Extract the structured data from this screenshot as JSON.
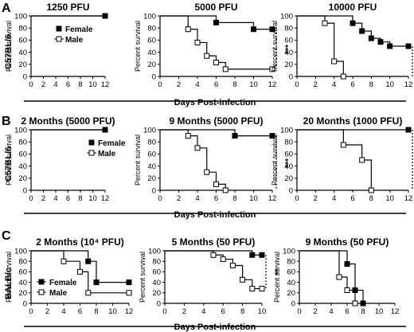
{
  "figure": {
    "rows": [
      {
        "letter": "A",
        "strain": "C57BL/6",
        "xlabel": "Days Post-infection"
      },
      {
        "letter": "B",
        "strain": "C57BL/6",
        "xlabel": "Days Post-infection"
      },
      {
        "letter": "C",
        "strain": "BALB/c",
        "xlabel": "Days Post-infection"
      }
    ],
    "ylabel": "Percent survival",
    "legend": {
      "female": "Female",
      "male": "Male"
    }
  },
  "chart_data": [
    {
      "type": "line",
      "id": "A1",
      "title": "1250 PFU",
      "ylabel": "Percent survival",
      "xlim": [
        0,
        12
      ],
      "ylim": [
        0,
        100
      ],
      "xticks": [
        0,
        2,
        4,
        6,
        8,
        10,
        12
      ],
      "yticks": [
        0,
        20,
        40,
        60,
        80,
        100
      ],
      "step": true,
      "significance": "",
      "series": [
        {
          "name": "Female",
          "marker": "filled-square",
          "x": [
            0,
            12
          ],
          "y": [
            100,
            100
          ]
        },
        {
          "name": "Male",
          "marker": "open-square",
          "x": [
            0,
            12
          ],
          "y": [
            100,
            100
          ]
        }
      ]
    },
    {
      "type": "line",
      "id": "A2",
      "title": "5000 PFU",
      "ylabel": "Percent survival",
      "xlim": [
        0,
        12
      ],
      "ylim": [
        0,
        100
      ],
      "xticks": [
        0,
        2,
        4,
        6,
        8,
        10,
        12
      ],
      "yticks": [
        0,
        20,
        40,
        60,
        80,
        100
      ],
      "step": true,
      "significance": "***",
      "series": [
        {
          "name": "Female",
          "marker": "filled-square",
          "x": [
            0,
            6,
            10,
            12
          ],
          "y": [
            100,
            89,
            78,
            78
          ]
        },
        {
          "name": "Male",
          "marker": "open-square",
          "x": [
            0,
            3,
            4,
            5,
            6,
            7,
            12
          ],
          "y": [
            100,
            78,
            56,
            34,
            23,
            12,
            12
          ]
        }
      ]
    },
    {
      "type": "line",
      "id": "A3",
      "title": "10000 PFU",
      "ylabel": "Percent survival",
      "xlim": [
        0,
        12
      ],
      "ylim": [
        0,
        100
      ],
      "xticks": [
        0,
        2,
        4,
        6,
        8,
        10,
        12
      ],
      "yticks": [
        0,
        20,
        40,
        60,
        80,
        100
      ],
      "step": true,
      "significance": "****",
      "series": [
        {
          "name": "Female",
          "marker": "filled-square",
          "x": [
            0,
            6,
            7,
            8,
            9,
            10,
            12
          ],
          "y": [
            100,
            88,
            75,
            63,
            57,
            50,
            50
          ]
        },
        {
          "name": "Male",
          "marker": "open-square",
          "x": [
            0,
            3,
            4,
            5
          ],
          "y": [
            100,
            88,
            25,
            0
          ]
        }
      ]
    },
    {
      "type": "line",
      "id": "B1",
      "title": "2 Months (5000 PFU)",
      "ylabel": "Percent survival",
      "xlim": [
        0,
        12
      ],
      "ylim": [
        0,
        100
      ],
      "xticks": [
        0,
        2,
        4,
        6,
        8,
        10,
        12
      ],
      "yticks": [
        0,
        20,
        40,
        60,
        80,
        100
      ],
      "step": true,
      "significance": "",
      "series": [
        {
          "name": "Female",
          "marker": "filled-square",
          "x": [
            0,
            12
          ],
          "y": [
            100,
            100
          ]
        },
        {
          "name": "Male",
          "marker": "open-square",
          "x": [
            0,
            12
          ],
          "y": [
            100,
            100
          ]
        }
      ]
    },
    {
      "type": "line",
      "id": "B2",
      "title": "9 Months (5000 PFU)",
      "ylabel": "Percent survival",
      "xlim": [
        0,
        12
      ],
      "ylim": [
        0,
        100
      ],
      "xticks": [
        0,
        2,
        4,
        6,
        8,
        10,
        12
      ],
      "yticks": [
        0,
        20,
        40,
        60,
        80,
        100
      ],
      "step": true,
      "significance": "***",
      "series": [
        {
          "name": "Female",
          "marker": "filled-square",
          "x": [
            0,
            8,
            12
          ],
          "y": [
            100,
            90,
            90
          ]
        },
        {
          "name": "Male",
          "marker": "open-square",
          "x": [
            0,
            3,
            4,
            5,
            6,
            7
          ],
          "y": [
            100,
            90,
            70,
            30,
            10,
            0
          ]
        }
      ]
    },
    {
      "type": "line",
      "id": "B3",
      "title": "20 Months (1000 PFU)",
      "ylabel": "Percent survival",
      "xlim": [
        0,
        12
      ],
      "ylim": [
        0,
        100
      ],
      "xticks": [
        0,
        2,
        4,
        6,
        8,
        10,
        12
      ],
      "yticks": [
        0,
        20,
        40,
        60,
        80,
        100
      ],
      "step": true,
      "significance": "**",
      "series": [
        {
          "name": "Female",
          "marker": "filled-square",
          "x": [
            0,
            12
          ],
          "y": [
            100,
            100
          ]
        },
        {
          "name": "Male",
          "marker": "open-square",
          "x": [
            0,
            5,
            7,
            8
          ],
          "y": [
            100,
            75,
            50,
            0
          ]
        }
      ]
    },
    {
      "type": "line",
      "id": "C1",
      "title": "2 Months (10⁴ PFU)",
      "ylabel": "Percent survival",
      "xlim": [
        0,
        12
      ],
      "ylim": [
        0,
        100
      ],
      "xticks": [
        0,
        2,
        4,
        6,
        8,
        10,
        12
      ],
      "yticks": [
        0,
        20,
        40,
        60,
        80,
        100
      ],
      "step": true,
      "significance": "",
      "series": [
        {
          "name": "Female",
          "marker": "filled-square",
          "x": [
            0,
            7,
            8,
            12
          ],
          "y": [
            100,
            80,
            40,
            40
          ]
        },
        {
          "name": "Male",
          "marker": "open-square",
          "x": [
            0,
            4,
            6,
            7,
            12
          ],
          "y": [
            100,
            80,
            60,
            20,
            20
          ]
        }
      ]
    },
    {
      "type": "line",
      "id": "C2",
      "title": "5 Months (50 PFU)",
      "ylabel": "Percent survival",
      "xlim": [
        0,
        10
      ],
      "ylim": [
        0,
        100
      ],
      "xticks": [
        0,
        2,
        4,
        6,
        8,
        10
      ],
      "yticks": [
        0,
        20,
        40,
        60,
        80,
        100
      ],
      "step": true,
      "significance": "**",
      "series": [
        {
          "name": "Female",
          "marker": "filled-square",
          "x": [
            0,
            9,
            10
          ],
          "y": [
            100,
            92,
            92
          ]
        },
        {
          "name": "Male",
          "marker": "open-square",
          "x": [
            0,
            5,
            6,
            7,
            8,
            9,
            10
          ],
          "y": [
            100,
            92,
            84,
            72,
            45,
            28,
            28
          ]
        }
      ]
    },
    {
      "type": "line",
      "id": "C3",
      "title": "9 Months (50 PFU)",
      "ylabel": "Percent survival",
      "xlim": [
        0,
        12
      ],
      "ylim": [
        0,
        100
      ],
      "xticks": [
        0,
        2,
        4,
        6,
        8,
        10,
        12
      ],
      "yticks": [
        0,
        20,
        40,
        60,
        80,
        100
      ],
      "step": true,
      "significance": "",
      "series": [
        {
          "name": "Female",
          "marker": "filled-square",
          "x": [
            0,
            6,
            7,
            8
          ],
          "y": [
            100,
            75,
            25,
            0
          ]
        },
        {
          "name": "Male",
          "marker": "open-square",
          "x": [
            0,
            5,
            6,
            7
          ],
          "y": [
            100,
            50,
            25,
            0
          ]
        }
      ]
    }
  ]
}
